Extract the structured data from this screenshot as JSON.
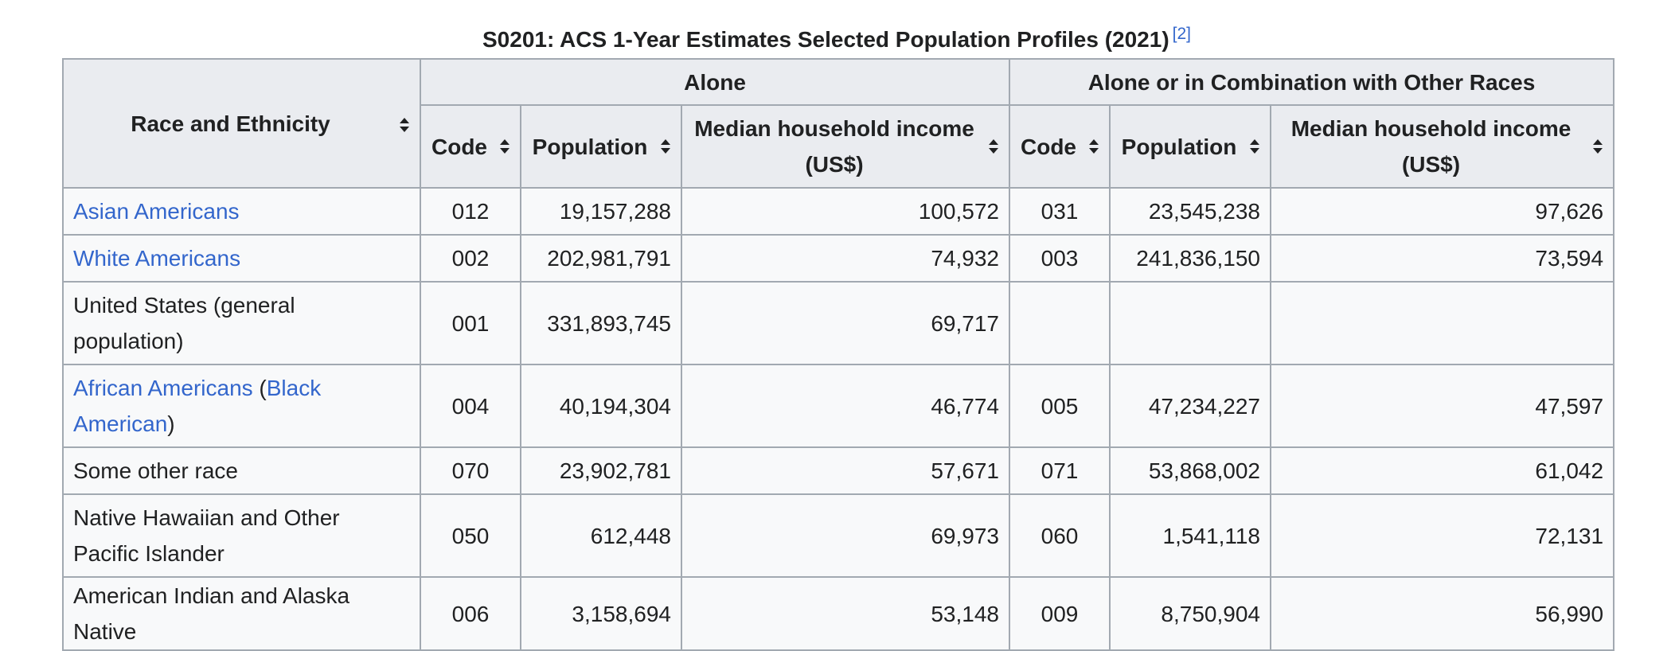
{
  "caption": {
    "title": "S0201: ACS 1-Year Estimates Selected Population Profiles (2021)",
    "ref": "[2]"
  },
  "table": {
    "race_header": "Race and Ethnicity",
    "groups": [
      "Alone",
      "Alone or in Combination with Other Races"
    ],
    "sub_headers": {
      "code": "Code",
      "population": "Population",
      "income": "Median household income (US$)"
    },
    "rows": [
      {
        "race": [
          {
            "text": "Asian Americans",
            "link": true
          }
        ],
        "alone_code": "012",
        "alone_pop": "19,157,288",
        "alone_income": "100,572",
        "combo_code": "031",
        "combo_pop": "23,545,238",
        "combo_income": "97,626"
      },
      {
        "race": [
          {
            "text": "White Americans",
            "link": true
          }
        ],
        "alone_code": "002",
        "alone_pop": "202,981,791",
        "alone_income": "74,932",
        "combo_code": "003",
        "combo_pop": "241,836,150",
        "combo_income": "73,594"
      },
      {
        "race": [
          {
            "text": "United States (general population)",
            "link": false
          }
        ],
        "alone_code": "001",
        "alone_pop": "331,893,745",
        "alone_income": "69,717",
        "combo_code": "",
        "combo_pop": "",
        "combo_income": ""
      },
      {
        "race": [
          {
            "text": "African Americans",
            "link": true
          },
          {
            "text": " (",
            "link": false
          },
          {
            "text": "Black American",
            "link": true
          },
          {
            "text": ")",
            "link": false
          }
        ],
        "alone_code": "004",
        "alone_pop": "40,194,304",
        "alone_income": "46,774",
        "combo_code": "005",
        "combo_pop": "47,234,227",
        "combo_income": "47,597"
      },
      {
        "race": [
          {
            "text": "Some other race",
            "link": false
          }
        ],
        "alone_code": "070",
        "alone_pop": "23,902,781",
        "alone_income": "57,671",
        "combo_code": "071",
        "combo_pop": "53,868,002",
        "combo_income": "61,042"
      },
      {
        "race": [
          {
            "text": "Native Hawaiian and Other Pacific Islander",
            "link": false
          }
        ],
        "alone_code": "050",
        "alone_pop": "612,448",
        "alone_income": "69,973",
        "combo_code": "060",
        "combo_pop": "1,541,118",
        "combo_income": "72,131"
      },
      {
        "race": [
          {
            "text": "American Indian and Alaska Native",
            "link": false
          }
        ],
        "alone_code": "006",
        "alone_pop": "3,158,694",
        "alone_income": "53,148",
        "combo_code": "009",
        "combo_pop": "8,750,904",
        "combo_income": "56,990"
      }
    ]
  },
  "icons": {
    "sort": "sort-arrows-icon"
  },
  "colors": {
    "link": "#3366cc",
    "header_bg": "#eaecf0",
    "cell_bg": "#f8f9fa",
    "border": "#a2a9b1",
    "text": "#202122"
  }
}
